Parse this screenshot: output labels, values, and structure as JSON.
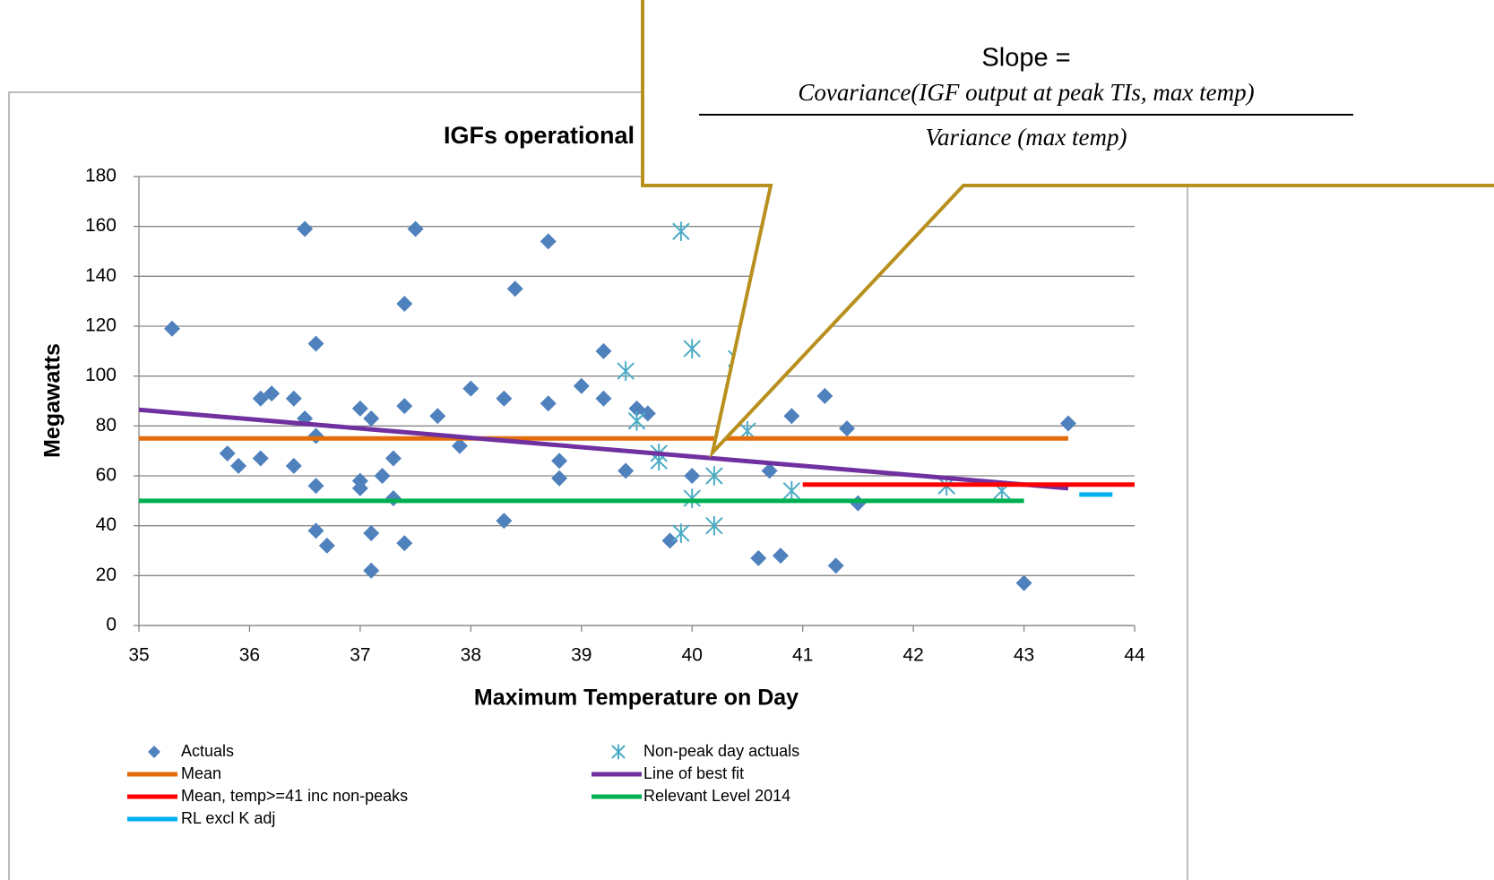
{
  "chart_data": {
    "type": "scatter",
    "title": "IGFs operational",
    "xlabel": "Maximum Temperature on Day",
    "ylabel": "Megawatts",
    "xlim": [
      35,
      44
    ],
    "xticks": [
      35,
      36,
      37,
      38,
      39,
      40,
      41,
      42,
      43,
      44
    ],
    "ylim": [
      0,
      180
    ],
    "yticks": [
      0,
      20,
      40,
      60,
      80,
      100,
      120,
      140,
      160,
      180
    ],
    "grid": true,
    "legend": "bottom",
    "series": [
      {
        "name": "Actuals",
        "color": "#4f81bd",
        "mode": "markers",
        "marker": "diamond",
        "x": [
          35.3,
          35.8,
          35.9,
          36.1,
          36.1,
          36.2,
          36.4,
          36.4,
          36.5,
          36.5,
          36.6,
          36.6,
          36.6,
          36.6,
          36.7,
          37.0,
          37.0,
          37.0,
          37.1,
          37.1,
          37.1,
          37.2,
          37.3,
          37.3,
          37.4,
          37.4,
          37.4,
          37.5,
          37.7,
          37.9,
          38.0,
          38.3,
          38.3,
          38.4,
          38.7,
          38.7,
          38.8,
          38.8,
          39.0,
          39.2,
          39.2,
          39.4,
          39.5,
          39.6,
          39.8,
          40.0,
          40.6,
          40.7,
          40.8,
          40.9,
          41.2,
          41.3,
          41.4,
          41.5,
          43.0,
          43.4
        ],
        "values": [
          119,
          69,
          64,
          91,
          67,
          93,
          91,
          64,
          159,
          83,
          113,
          76,
          56,
          38,
          32,
          87,
          58,
          55,
          83,
          37,
          22,
          60,
          67,
          51,
          129,
          88,
          33,
          159,
          84,
          72,
          95,
          91,
          42,
          135,
          154,
          89,
          66,
          59,
          96,
          110,
          91,
          62,
          87,
          85,
          34,
          60,
          27,
          62,
          28,
          84,
          92,
          24,
          79,
          49,
          17,
          81
        ]
      },
      {
        "name": "Non-peak day actuals",
        "color": "#4bacc6",
        "mode": "markers",
        "marker": "asterisk",
        "x": [
          39.4,
          39.5,
          39.7,
          39.7,
          39.9,
          39.9,
          40.0,
          40.0,
          40.2,
          40.2,
          40.4,
          40.5,
          40.9,
          42.3,
          42.8
        ],
        "values": [
          102,
          82,
          69,
          66,
          158,
          37,
          111,
          51,
          60,
          40,
          107,
          78,
          54,
          56,
          54
        ]
      },
      {
        "name": "Mean",
        "color": "#e46c0a",
        "mode": "line",
        "x": [
          35,
          43.4
        ],
        "values": [
          75,
          75
        ]
      },
      {
        "name": "Line of best fit",
        "color": "#7030a0",
        "mode": "line",
        "x": [
          35,
          43.4
        ],
        "values": [
          86.5,
          55
        ]
      },
      {
        "name": "Mean, temp>=41 inc non-peaks",
        "color": "#ff0000",
        "mode": "line",
        "x": [
          41,
          44
        ],
        "values": [
          56.5,
          56.5
        ]
      },
      {
        "name": "Relevant Level 2014",
        "color": "#00b050",
        "mode": "line",
        "x": [
          35,
          43
        ],
        "values": [
          50,
          50
        ]
      },
      {
        "name": "RL excl K adj",
        "color": "#00b0f0",
        "mode": "line",
        "x": [
          43.5,
          43.8
        ],
        "values": [
          52.5,
          52.5
        ]
      }
    ]
  },
  "callout": {
    "heading": "Slope =",
    "numerator": "Covariance(IGF output at peak TIs, max temp)",
    "denominator": "Variance (max temp)"
  }
}
